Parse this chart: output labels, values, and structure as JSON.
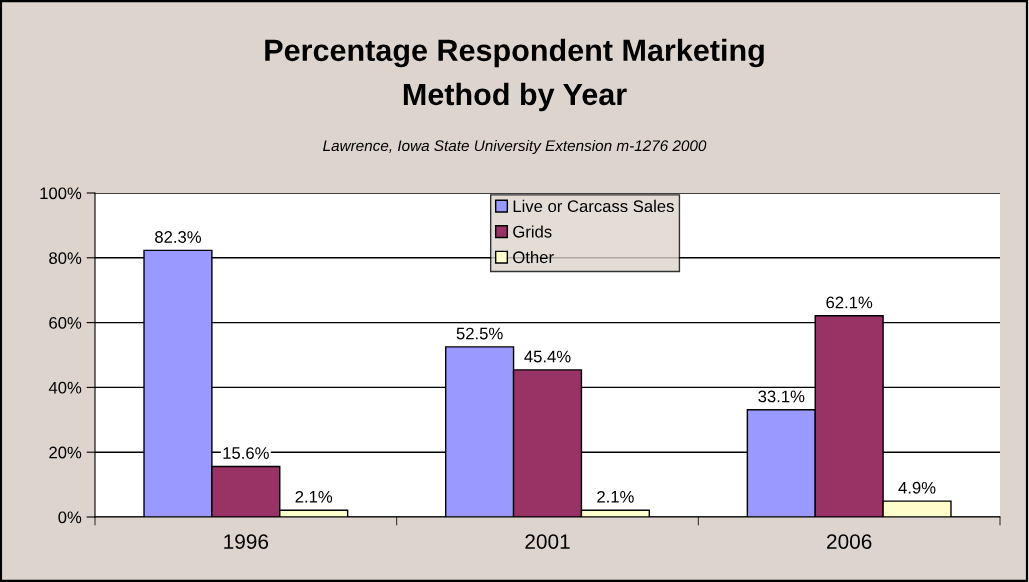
{
  "chart_data": {
    "type": "bar",
    "title": "Percentage Respondent Marketing\nMethod by Year",
    "subtitle": "Lawrence, Iowa State University Extension m-1276 2000",
    "categories": [
      "1996",
      "2001",
      "2006"
    ],
    "series": [
      {
        "name": "Live or Carcass Sales",
        "color": "#9999ff",
        "values": [
          82.3,
          52.5,
          33.1
        ],
        "value_labels": [
          "82.3%",
          "52.5%",
          "33.1%"
        ]
      },
      {
        "name": "Grids",
        "color": "#993366",
        "values": [
          15.6,
          45.4,
          62.1
        ],
        "value_labels": [
          "15.6%",
          "45.4%",
          "62.1%"
        ]
      },
      {
        "name": "Other",
        "color": "#ffffcc",
        "values": [
          2.1,
          2.1,
          4.9
        ],
        "value_labels": [
          "2.1%",
          "2.1%",
          "4.9%"
        ]
      }
    ],
    "ylim": [
      0,
      100
    ],
    "yticks": [
      {
        "value": 0,
        "label": "0%"
      },
      {
        "value": 20,
        "label": "20%"
      },
      {
        "value": 40,
        "label": "40%"
      },
      {
        "value": 60,
        "label": "60%"
      },
      {
        "value": 80,
        "label": "80%"
      },
      {
        "value": 100,
        "label": "100%"
      }
    ],
    "grid": "y",
    "legend": "top"
  }
}
